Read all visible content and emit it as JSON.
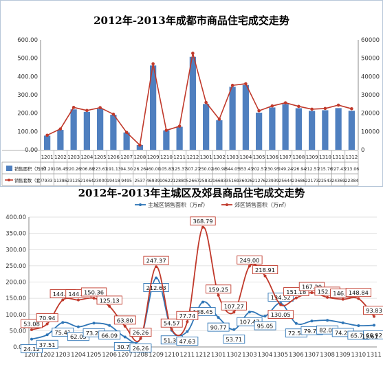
{
  "chart_data": [
    {
      "type": "bar",
      "title": "2012年-2013年成都市商品住宅成交走势",
      "categories": [
        "1201",
        "1202",
        "1203",
        "1204",
        "1205",
        "1206",
        "1207",
        "1208",
        "1209",
        "1210",
        "1211",
        "1212",
        "1301",
        "1302",
        "1303",
        "1304",
        "1305",
        "1306",
        "1307",
        "1308",
        "1309",
        "1310",
        "1311",
        "1312"
      ],
      "series": [
        {
          "name": "销售面积（万㎡）",
          "kind": "bar",
          "axis": "left",
          "color": "#4f7fbf",
          "values": [
            77.2,
            108.45,
            220.26,
            206.88,
            223.61,
            191.13,
            94.3,
            26.26,
            460.0,
            105.83,
            125.37,
            507.27,
            250.02,
            160.98,
            344.05,
            353.43,
            202.57,
            230.95,
            249.24,
            226.94,
            212.57,
            215.76,
            227.43,
            213.06
          ],
          "labels": [
            "77.20",
            "108.45",
            "220.26",
            "206.88",
            "223.61",
            "191.13",
            "94.30",
            "26.26",
            "460.00",
            "105.83",
            "125.37",
            "507.27",
            "250.02",
            "160.98",
            "344.05",
            "353.43",
            "202.57",
            "230.95",
            "249.24",
            "226.94",
            "212.57",
            "215.76",
            "227.43",
            "213.06"
          ]
        },
        {
          "name": "销售套数（套）",
          "kind": "line",
          "axis": "right",
          "color": "#c0392b",
          "values": [
            7933,
            11386,
            23125,
            21464,
            23000,
            19418,
            9495,
            2537,
            46939,
            10622,
            12880,
            52667,
            25832,
            16683,
            35169,
            36026,
            21276,
            23939,
            25644,
            23686,
            22173,
            22543,
            24369,
            22384
          ],
          "labels": [
            "7933",
            "11386",
            "23125",
            "21464",
            "23000",
            "19418",
            "9495",
            "2537",
            "46939",
            "10622",
            "12880",
            "52667",
            "25832",
            "16683",
            "35169",
            "36026",
            "21276",
            "23939",
            "25644",
            "23686",
            "22173",
            "22543",
            "24369",
            "22384"
          ]
        }
      ],
      "yleft": {
        "ticks": [
          "0.00",
          "100.00",
          "200.00",
          "300.00",
          "400.00",
          "500.00",
          "600.00"
        ],
        "ylim": [
          0,
          600
        ]
      },
      "yright": {
        "ticks": [
          "0",
          "10000",
          "20000",
          "30000",
          "40000",
          "50000",
          "60000"
        ],
        "ylim": [
          0,
          60000
        ]
      },
      "grid": false,
      "legend": "data-table"
    },
    {
      "type": "line",
      "title": "2012年-2013年主城区及郊县商品住宅成交走势",
      "categories": [
        "1201",
        "1202",
        "1203",
        "1204",
        "1205",
        "1206",
        "1207",
        "1208",
        "1209",
        "1210",
        "1211",
        "1212",
        "1301",
        "1302",
        "1303",
        "1304",
        "1305",
        "1306",
        "1307",
        "1308",
        "1309",
        "1310",
        "1311"
      ],
      "series": [
        {
          "name": "主城区销售面积（万㎡）",
          "color": "#2e75b6",
          "values": [
            24.12,
            37.51,
            75.41,
            62.05,
            73.25,
            66.09,
            30.71,
            26.26,
            212.63,
            51.31,
            47.63,
            138.45,
            90.77,
            53.71,
            107.47,
            95.05,
            134.52,
            72.57,
            79.77,
            82.04,
            74.23,
            65.71,
            66.92
          ],
          "labels": [
            "24.12",
            "37.51",
            "75.41",
            "62.05",
            "73.25",
            "66.09",
            "30.71",
            "26.26",
            "212.63",
            "51.31",
            "47.63",
            "138.45",
            "90.77",
            "53.71",
            "107.47",
            "95.05",
            "134.52",
            "72.57",
            "79.77",
            "82.04",
            "74.23",
            "65.71",
            "66.92"
          ]
        },
        {
          "name": "郊区销售面积（万㎡）",
          "color": "#c0392b",
          "values": [
            53.08,
            70.94,
            144.85,
            144.83,
            150.36,
            125.13,
            63.8,
            26.26,
            247.37,
            54.57,
            77.74,
            368.79,
            159.25,
            107.27,
            249.0,
            218.91,
            130.05,
            151.18,
            167.2,
            152.71,
            146.86,
            148.84,
            93.83
          ],
          "labels": [
            "53.08",
            "70.94",
            "144.85",
            "144.83",
            "150.36",
            "125.13",
            "63.80",
            "26.26",
            "247.37",
            "54.57",
            "77.74",
            "368.79",
            "159.25",
            "107.27",
            "249.00",
            "218.91",
            "130.05",
            "151.18",
            "167.20",
            "152.71",
            "146.86",
            "148.84",
            "93.83"
          ]
        }
      ],
      "extra_label": "13.61",
      "yticks": [
        "0.00",
        "50.00",
        "100.00",
        "150.00",
        "200.00",
        "250.00",
        "300.00",
        "350.00",
        "400.00"
      ],
      "ylim": [
        0,
        400
      ],
      "grid": true,
      "legend": "top-center"
    }
  ]
}
